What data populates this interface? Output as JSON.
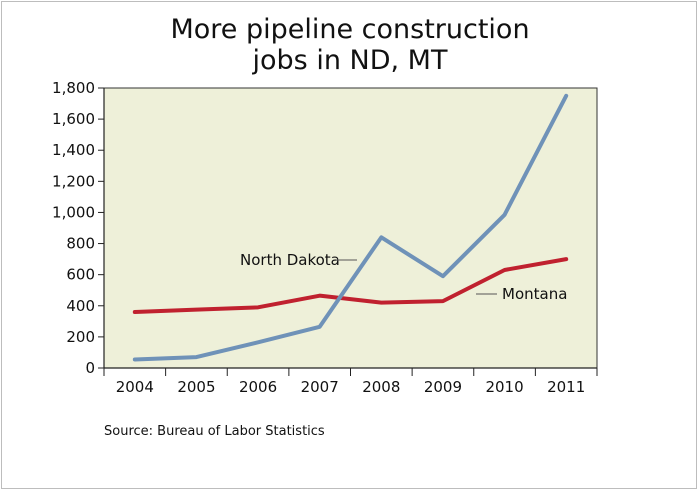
{
  "chart_data": {
    "type": "line",
    "title_lines": [
      "More pipeline construction",
      "jobs in ND, MT"
    ],
    "categories": [
      "2004",
      "2005",
      "2006",
      "2007",
      "2008",
      "2009",
      "2010",
      "2011"
    ],
    "y_ticks": [
      "0",
      "200",
      "400",
      "600",
      "800",
      "1,000",
      "1,200",
      "1,400",
      "1,600",
      "1,800"
    ],
    "ylim": [
      0,
      1800
    ],
    "grid": false,
    "plot_background": "#eef0d9",
    "series": [
      {
        "name": "North Dakota",
        "color": "#6f92b8",
        "values": [
          55,
          70,
          165,
          265,
          840,
          590,
          985,
          1750
        ]
      },
      {
        "name": "Montana",
        "color": "#c0212f",
        "values": [
          360,
          375,
          390,
          465,
          420,
          430,
          630,
          700
        ]
      }
    ],
    "source": "Source: Bureau of Labor Statistics"
  }
}
